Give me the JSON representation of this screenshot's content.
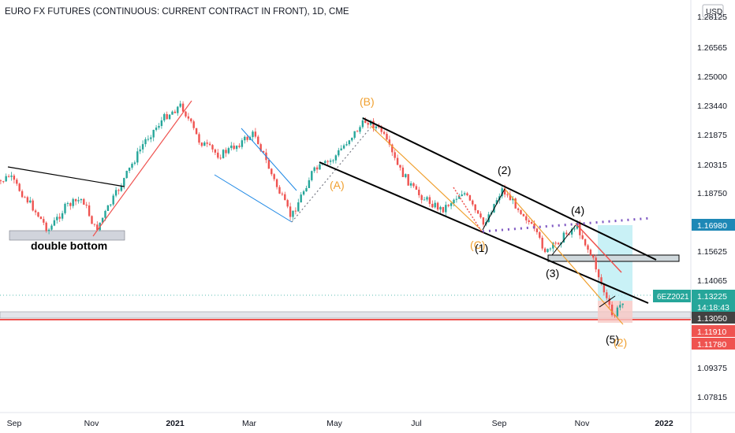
{
  "header": {
    "title": "EURO FX FUTURES (CONTINUOUS: CURRENT CONTRACT IN FRONT), 1D, CME",
    "currency": "USD"
  },
  "colors": {
    "up": "#26a69a",
    "down": "#ef5350",
    "wave_label_orange": "#f0a030",
    "trendline_black": "#000000",
    "projection_cyan": "#b2ebf2",
    "projection_pink": "#f8c8c4",
    "dotted_purple": "#7e57c2"
  },
  "chart_data": {
    "type": "candlestick",
    "title": "EURO FX FUTURES (CONTINUOUS: CURRENT CONTRACT IN FRONT), 1D, CME",
    "x_ticks": [
      "Sep",
      "Nov",
      "2021",
      "Mar",
      "May",
      "Jul",
      "Sep",
      "Nov",
      "2022"
    ],
    "y_ticks": [
      "1.28125",
      "1.26565",
      "1.25000",
      "1.23440",
      "1.21875",
      "1.20315",
      "1.18750",
      "1.15625",
      "1.14065",
      "1.09375",
      "1.07815"
    ],
    "ylim": [
      1.07,
      1.286
    ],
    "path_points": [
      [
        "2020-08-15",
        1.19
      ],
      [
        "2020-08-28",
        1.196
      ],
      [
        "2020-09-15",
        1.18
      ],
      [
        "2020-09-28",
        1.167
      ],
      [
        "2020-10-12",
        1.18
      ],
      [
        "2020-10-25",
        1.184
      ],
      [
        "2020-11-04",
        1.167
      ],
      [
        "2020-11-20",
        1.188
      ],
      [
        "2020-12-10",
        1.215
      ],
      [
        "2020-12-25",
        1.228
      ],
      [
        "2021-01-06",
        1.234
      ],
      [
        "2021-01-20",
        1.215
      ],
      [
        "2021-02-05",
        1.207
      ],
      [
        "2021-02-20",
        1.213
      ],
      [
        "2021-03-05",
        1.219
      ],
      [
        "2021-03-18",
        1.195
      ],
      [
        "2021-03-31",
        1.174
      ],
      [
        "2021-04-15",
        1.198
      ],
      [
        "2021-04-30",
        1.205
      ],
      [
        "2021-05-12",
        1.216
      ],
      [
        "2021-05-25",
        1.226
      ],
      [
        "2021-06-05",
        1.22
      ],
      [
        "2021-06-18",
        1.2
      ],
      [
        "2021-07-01",
        1.187
      ],
      [
        "2021-07-20",
        1.178
      ],
      [
        "2021-08-05",
        1.188
      ],
      [
        "2021-08-20",
        1.17
      ],
      [
        "2021-09-03",
        1.189
      ],
      [
        "2021-09-20",
        1.175
      ],
      [
        "2021-10-06",
        1.155
      ],
      [
        "2021-10-20",
        1.165
      ],
      [
        "2021-10-28",
        1.17
      ],
      [
        "2021-11-10",
        1.15
      ],
      [
        "2021-11-24",
        1.12
      ],
      [
        "2021-12-03",
        1.132
      ]
    ],
    "annotations": {
      "double_bottom": "double bottom",
      "wave_labels": [
        "(B)",
        "(A)",
        "(C)",
        "(1)",
        "(2)",
        "(3)",
        "(4)",
        "(5)",
        "(2)"
      ]
    },
    "price_labels": [
      {
        "text": "1.16980",
        "bg": "#1e88b6"
      },
      {
        "text": "1.13225",
        "bg": "#26a69a"
      },
      {
        "text": "14:18:43",
        "bg": "#26a69a"
      },
      {
        "text": "1.13050",
        "bg": "#424242"
      },
      {
        "text": "1.11910",
        "bg": "#ef5350"
      },
      {
        "text": "1.11780",
        "bg": "#ef5350"
      }
    ],
    "symbol_label": "6EZ2021",
    "grid": false,
    "legend": "none"
  }
}
